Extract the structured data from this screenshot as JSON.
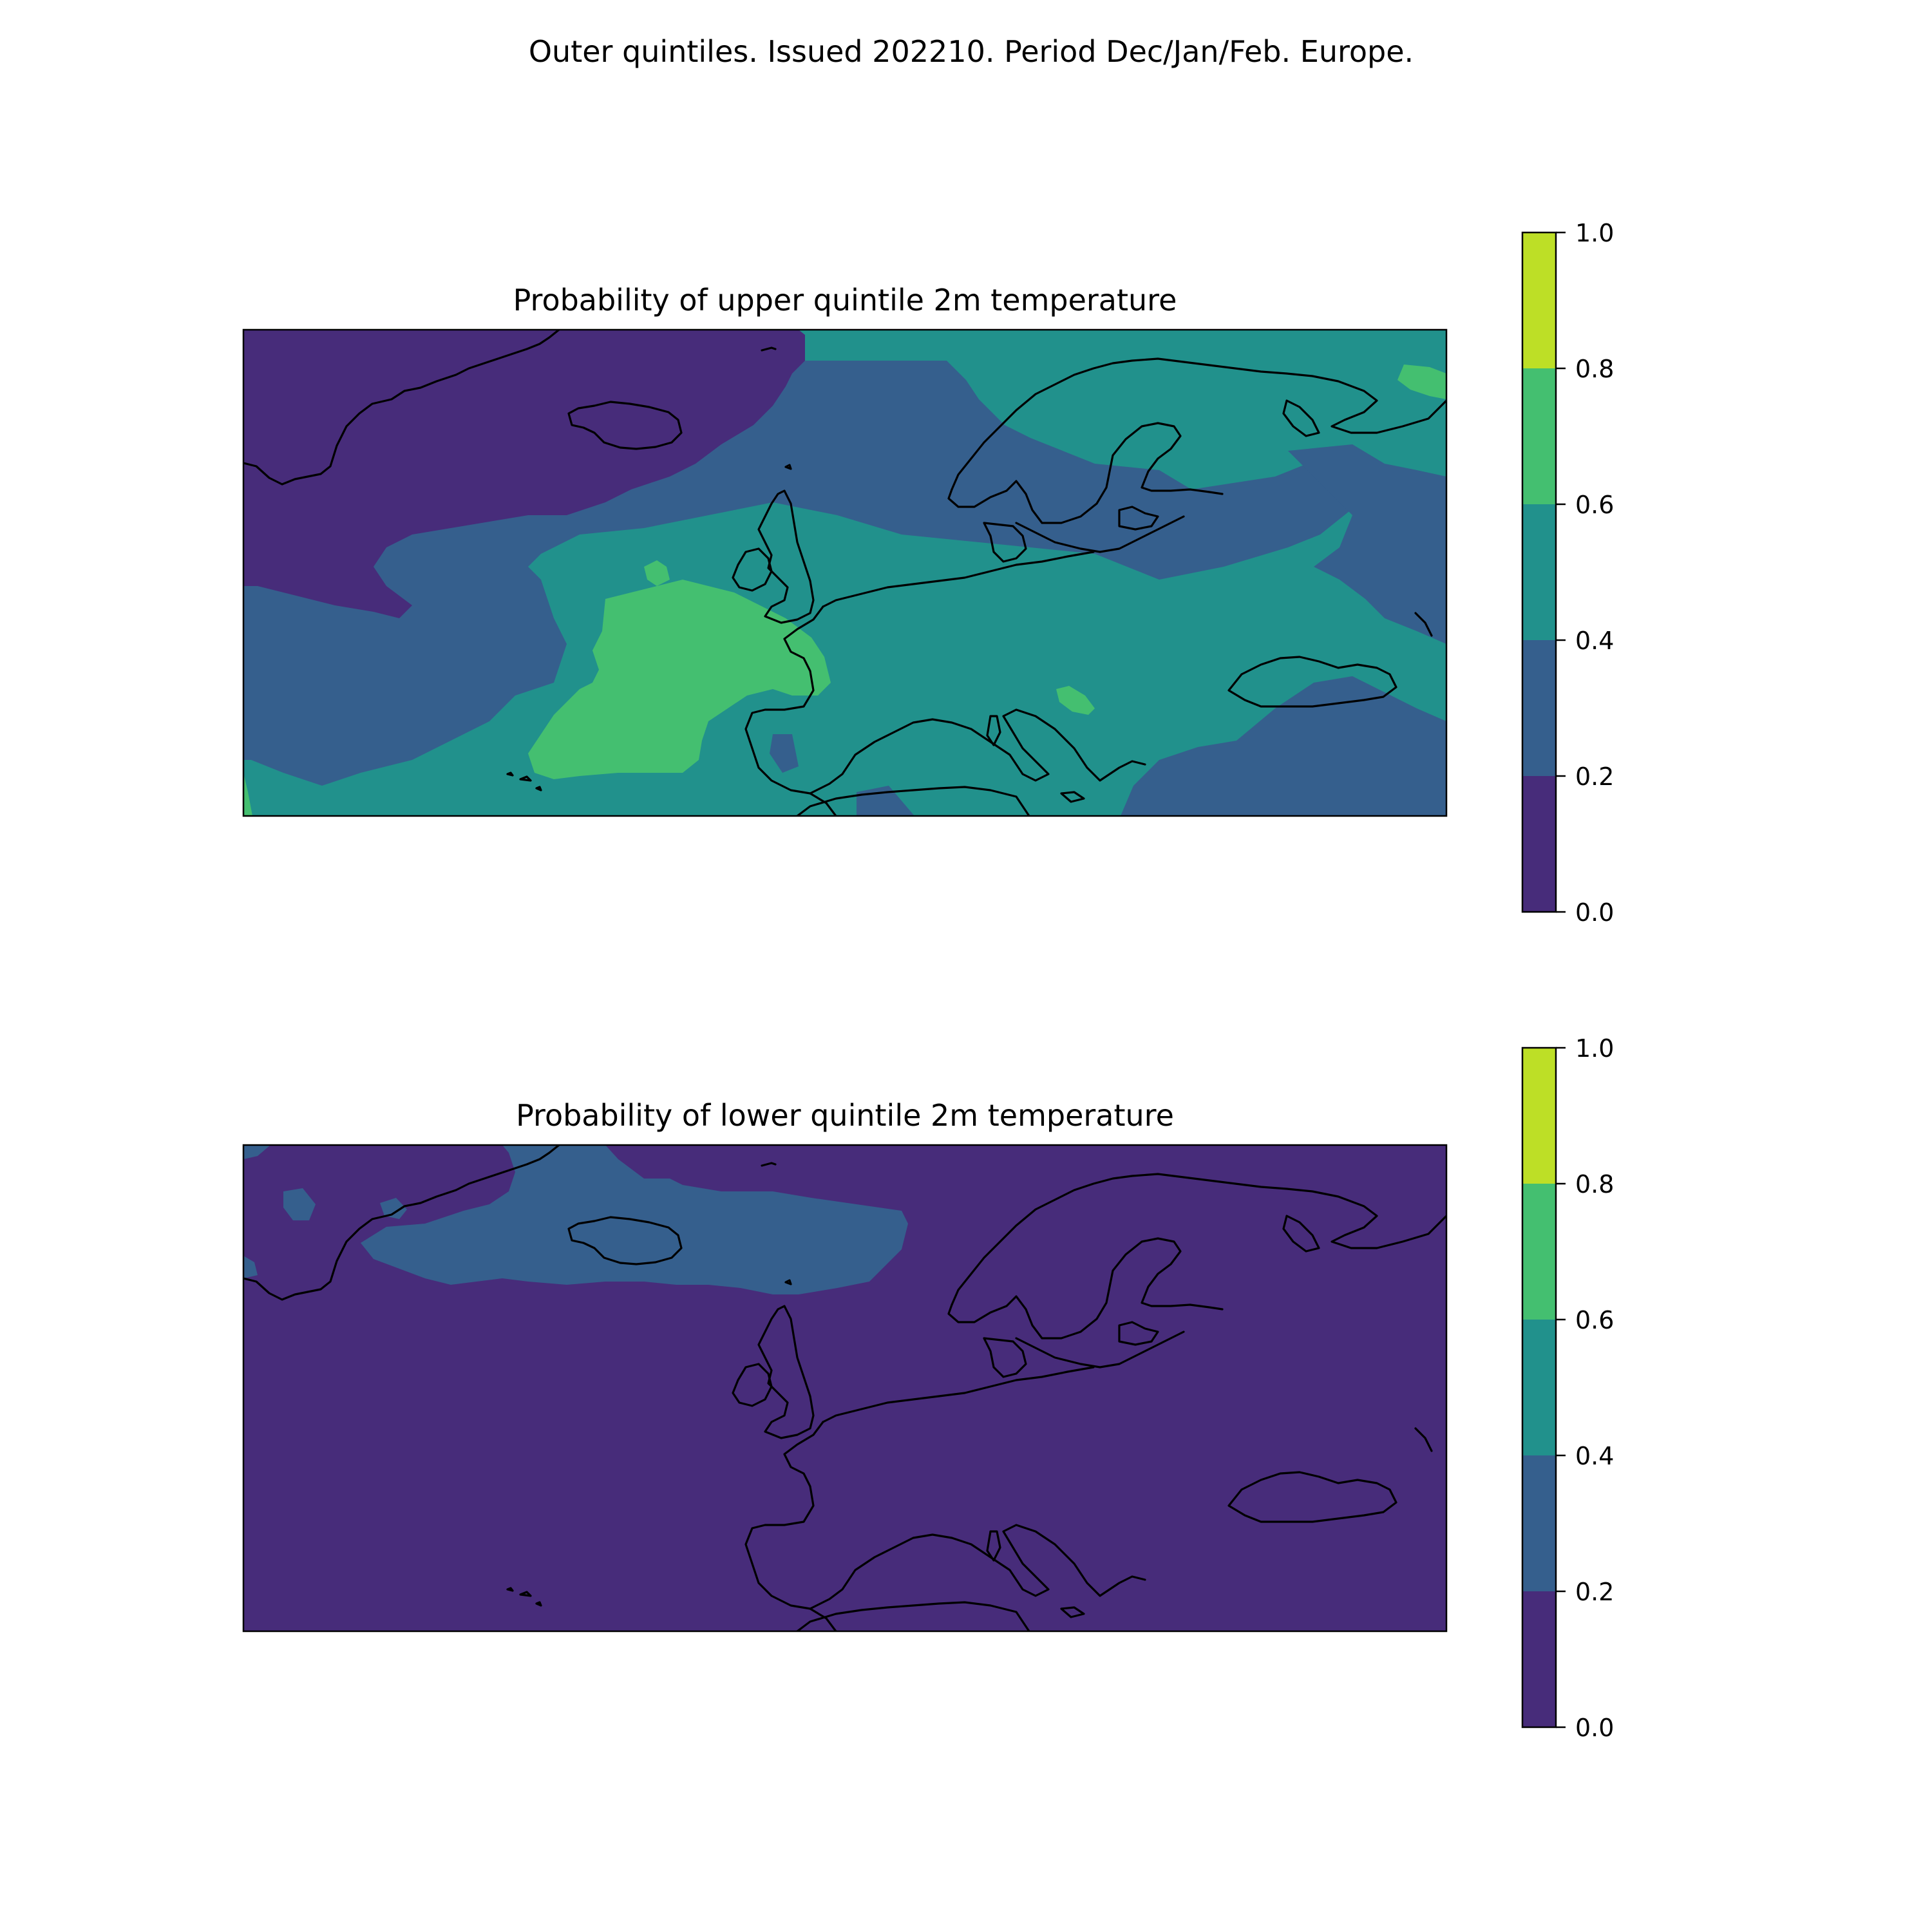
{
  "figure": {
    "suptitle": "Outer quintiles. Issued 202210. Period Dec/Jan/Feb. Europe."
  },
  "colorscale": {
    "levels": [
      0.0,
      0.2,
      0.4,
      0.6,
      0.8,
      1.0
    ],
    "tick_labels": [
      "0.0",
      "0.2",
      "0.4",
      "0.6",
      "0.8",
      "1.0"
    ],
    "colors": [
      "#472c7a",
      "#355f8d",
      "#21918c",
      "#44bf70",
      "#bddf26"
    ]
  },
  "panels": [
    {
      "title": "Probability of upper quintile 2m temperature",
      "background_class": "0.4-0.6"
    },
    {
      "title": "Probability of lower quintile 2m temperature",
      "background_class": "0.0-0.2"
    }
  ]
}
